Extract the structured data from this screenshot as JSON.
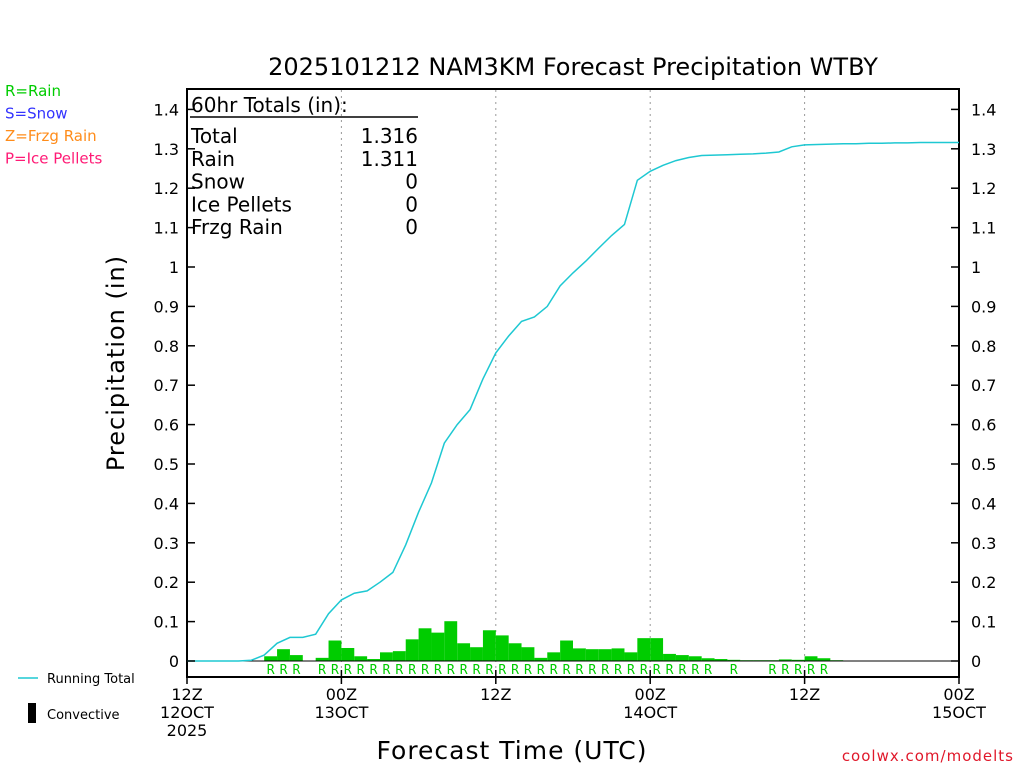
{
  "chart_data": {
    "type": "bar",
    "title": "2025101212 NAM3KM Forecast Precipitation WTBY",
    "xlabel": "Forecast Time (UTC)",
    "ylabel": "Precipitation (in)",
    "ylim": [
      0,
      1.45
    ],
    "yticks": [
      "0",
      "0.1",
      "0.2",
      "0.3",
      "0.4",
      "0.5",
      "0.6",
      "0.7",
      "0.8",
      "0.9",
      "1",
      "1.1",
      "1.2",
      "1.3",
      "1.4"
    ],
    "xrange_hours": [
      0,
      60
    ],
    "xticks": [
      {
        "hour": 0,
        "lines": [
          "12Z",
          "12OCT",
          "2025"
        ]
      },
      {
        "hour": 12,
        "lines": [
          "00Z",
          "13OCT"
        ]
      },
      {
        "hour": 24,
        "lines": [
          "12Z"
        ]
      },
      {
        "hour": 36,
        "lines": [
          "00Z",
          "14OCT"
        ]
      },
      {
        "hour": 48,
        "lines": [
          "12Z"
        ]
      },
      {
        "hour": 60,
        "lines": [
          "00Z",
          "15OCT"
        ]
      }
    ],
    "hourly_precip": [
      0,
      0,
      0,
      0,
      0,
      0,
      0.012,
      0.03,
      0.015,
      0,
      0.008,
      0.052,
      0.033,
      0.012,
      0.005,
      0.022,
      0.025,
      0.055,
      0.083,
      0.072,
      0.101,
      0.045,
      0.035,
      0.078,
      0.065,
      0.045,
      0.035,
      0.008,
      0.022,
      0.052,
      0.032,
      0.03,
      0.03,
      0.032,
      0.022,
      0.058,
      0.058,
      0.018,
      0.015,
      0.012,
      0.007,
      0.005,
      0.003,
      0.002,
      0.002,
      0.002,
      0.004,
      0.003,
      0.012,
      0.007,
      0.002,
      0.001,
      0.001,
      0.001,
      0.001,
      0.001,
      0.001,
      0.001,
      0,
      0
    ],
    "running_total": [
      0,
      0,
      0,
      0,
      0,
      0.002,
      0.015,
      0.045,
      0.06,
      0.06,
      0.068,
      0.12,
      0.155,
      0.172,
      0.178,
      0.2,
      0.225,
      0.295,
      0.378,
      0.452,
      0.553,
      0.6,
      0.638,
      0.716,
      0.782,
      0.825,
      0.862,
      0.873,
      0.9,
      0.952,
      0.985,
      1.015,
      1.048,
      1.08,
      1.108,
      1.22,
      1.243,
      1.258,
      1.27,
      1.278,
      1.283,
      1.284,
      1.285,
      1.286,
      1.287,
      1.289,
      1.292,
      1.305,
      1.31,
      1.311,
      1.312,
      1.313,
      1.313,
      1.314,
      1.314,
      1.315,
      1.315,
      1.316,
      1.316,
      1.316,
      1.316
    ],
    "ptype_hours": [
      6,
      7,
      8,
      10,
      11,
      12,
      13,
      14,
      15,
      16,
      17,
      18,
      19,
      20,
      21,
      22,
      23,
      24,
      25,
      26,
      27,
      28,
      29,
      30,
      31,
      32,
      33,
      34,
      35,
      36,
      37,
      38,
      39,
      40,
      42,
      45,
      46,
      47,
      48,
      49
    ],
    "ptype_letter": "R",
    "series": [
      {
        "name": "Running Total",
        "color": "#1ec8d2"
      },
      {
        "name": "Convective",
        "color": "#000000"
      }
    ],
    "bar_color": "#00cc00",
    "grid": "vertical dotted at 00Z/12Z"
  },
  "legend": {
    "ptypes": [
      {
        "label": "R=Rain",
        "color": "#00cc00"
      },
      {
        "label": "S=Snow",
        "color": "#3333ff"
      },
      {
        "label": "Z=Frzg Rain",
        "color": "#ff8c1a"
      },
      {
        "label": "P=Ice Pellets",
        "color": "#ff1a75"
      }
    ],
    "running_total_label": "Running Total",
    "convective_label": "Convective"
  },
  "totals": {
    "header": "60hr Totals (in):",
    "rows": [
      {
        "label": "Total",
        "value": "1.316"
      },
      {
        "label": "Rain",
        "value": "1.311"
      },
      {
        "label": "Snow",
        "value": "0"
      },
      {
        "label": "Ice Pellets",
        "value": "0"
      },
      {
        "label": "Frzg Rain",
        "value": "0"
      }
    ]
  },
  "footer": {
    "credit": "coolwx.com/modelts"
  }
}
